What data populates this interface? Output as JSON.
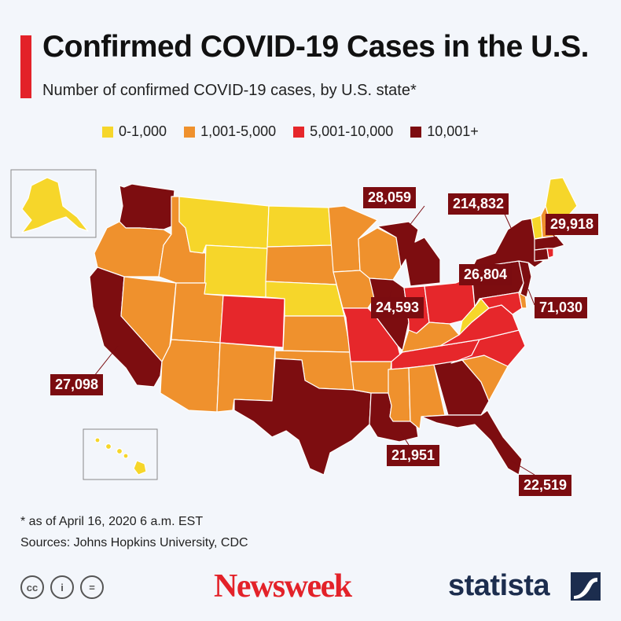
{
  "header": {
    "title": "Confirmed COVID-19 Cases in the U.S.",
    "subtitle": "Number of confirmed COVID-19 cases, by U.S. state*"
  },
  "legend": [
    {
      "label": "0-1,000",
      "color": "#f6d62a"
    },
    {
      "label": "1,001-5,000",
      "color": "#ef912d"
    },
    {
      "label": "5,001-10,000",
      "color": "#e6272b"
    },
    {
      "label": "10,001+",
      "color": "#7d0d10"
    }
  ],
  "states": {
    "WA": 3,
    "OR": 1,
    "CA": 3,
    "NV": 1,
    "ID": 1,
    "MT": 0,
    "WY": 0,
    "UT": 1,
    "AZ": 1,
    "CO": 2,
    "NM": 1,
    "ND": 0,
    "SD": 1,
    "NE": 0,
    "KS": 1,
    "OK": 1,
    "TX": 3,
    "MN": 1,
    "IA": 1,
    "MO": 2,
    "AR": 1,
    "LA": 3,
    "WI": 1,
    "IL": 3,
    "MI": 3,
    "IN": 2,
    "OH": 2,
    "KY": 1,
    "TN": 2,
    "MS": 1,
    "AL": 1,
    "GA": 3,
    "FL": 3,
    "SC": 1,
    "NC": 2,
    "VA": 2,
    "WV": 0,
    "PA": 3,
    "NY": 3,
    "NJ": 3,
    "MD": 2,
    "DE": 1,
    "VT": 0,
    "NH": 1,
    "ME": 0,
    "MA": 3,
    "CT": 3,
    "RI": 2,
    "AK": 0,
    "HI": 0
  },
  "callouts": [
    {
      "state": "CA",
      "value": "27,098"
    },
    {
      "state": "IL",
      "value": "28,059"
    },
    {
      "state": "NY",
      "value": "214,832"
    },
    {
      "state": "MA",
      "value": "29,918"
    },
    {
      "state": "PA",
      "value": "26,804"
    },
    {
      "state": "MI",
      "value": "24,593"
    },
    {
      "state": "NJ",
      "value": "71,030"
    },
    {
      "state": "LA",
      "value": "21,951"
    },
    {
      "state": "FL",
      "value": "22,519"
    }
  ],
  "footer": {
    "note": "* as of April 16, 2020 6 a.m. EST",
    "sources": "Sources: Johns Hopkins University, CDC",
    "cc_icons": [
      "cc-icon",
      "attribution-icon",
      "noderivs-icon"
    ],
    "cc_symbols": [
      "cc",
      "i",
      "="
    ],
    "newsweek_logo": "Newsweek",
    "statista_logo": "statista"
  }
}
